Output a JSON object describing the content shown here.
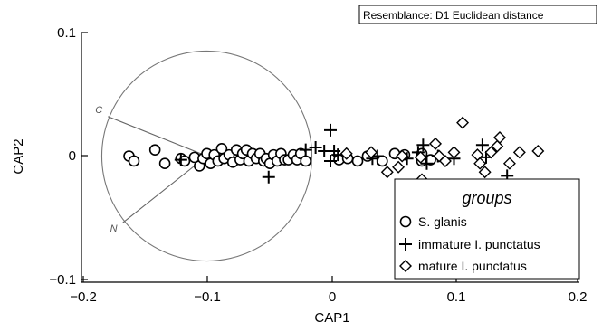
{
  "chart_data": {
    "type": "scatter",
    "badge": "Resemblance: D1 Euclidean distance",
    "xlabel": "CAP1",
    "ylabel": "CAP2",
    "xlim": [
      -0.2,
      0.2
    ],
    "ylim": [
      -0.1,
      0.1
    ],
    "x_ticks": [
      "−0.2",
      "−0.1",
      "0",
      "0.1",
      "0.2"
    ],
    "y_ticks": [
      "0.1",
      "0",
      "−0.1"
    ],
    "legend": {
      "title": "groups",
      "placement": "bottom-right"
    },
    "correlation_circle": {
      "center": [
        -0.1,
        0
      ],
      "radius": 0.085,
      "vectors": [
        {
          "label": "C",
          "x": -0.18,
          "y": 0.032
        },
        {
          "label": "N",
          "x": -0.168,
          "y": -0.054
        }
      ]
    },
    "series": [
      {
        "name": "S. glanis",
        "marker": "circle",
        "points": [
          [
            -0.163,
            0.0
          ],
          [
            -0.159,
            -0.004
          ],
          [
            -0.142,
            0.005
          ],
          [
            -0.134,
            -0.006
          ],
          [
            -0.121,
            -0.002
          ],
          [
            -0.118,
            -0.004
          ],
          [
            -0.11,
            -0.001
          ],
          [
            -0.106,
            -0.008
          ],
          [
            -0.103,
            -0.002
          ],
          [
            -0.1,
            0.002
          ],
          [
            -0.097,
            -0.006
          ],
          [
            -0.094,
            0.001
          ],
          [
            -0.091,
            -0.004
          ],
          [
            -0.088,
            0.006
          ],
          [
            -0.086,
            -0.002
          ],
          [
            -0.082,
            0.001
          ],
          [
            -0.079,
            -0.005
          ],
          [
            -0.076,
            0.005
          ],
          [
            -0.073,
            -0.003
          ],
          [
            -0.071,
            0.002
          ],
          [
            -0.068,
            0.005
          ],
          [
            -0.066,
            -0.004
          ],
          [
            -0.063,
            0.002
          ],
          [
            -0.06,
            -0.002
          ],
          [
            -0.057,
            0.002
          ],
          [
            -0.054,
            -0.004
          ],
          [
            -0.052,
            -0.002
          ],
          [
            -0.049,
            -0.006
          ],
          [
            -0.046,
            0.001
          ],
          [
            -0.043,
            -0.004
          ],
          [
            -0.04,
            0.002
          ],
          [
            -0.037,
            -0.003
          ],
          [
            -0.034,
            -0.003
          ],
          [
            -0.03,
            0.001
          ],
          [
            -0.027,
            -0.003
          ],
          [
            -0.024,
            0.002
          ],
          [
            -0.02,
            -0.004
          ],
          [
            0.007,
            -0.003
          ],
          [
            0.014,
            -0.002
          ],
          [
            0.022,
            -0.004
          ],
          [
            0.03,
            0.0
          ],
          [
            0.042,
            -0.004
          ],
          [
            0.052,
            0.002
          ],
          [
            0.06,
            0.001
          ],
          [
            0.074,
            -0.004
          ],
          [
            0.074,
            0.002
          ],
          [
            0.081,
            -0.003
          ]
        ]
      },
      {
        "name": "immature I. punctatus",
        "marker": "plus",
        "points": [
          [
            -0.121,
            -0.003
          ],
          [
            -0.05,
            -0.017
          ],
          [
            -0.02,
            0.005
          ],
          [
            -0.012,
            0.007
          ],
          [
            -0.005,
            0.004
          ],
          [
            0.0,
            0.021
          ],
          [
            0.0,
            -0.004
          ],
          [
            0.003,
            0.004
          ],
          [
            0.006,
            0.001
          ],
          [
            0.034,
            -0.002
          ],
          [
            0.038,
            0.0
          ],
          [
            0.062,
            -0.002
          ],
          [
            0.071,
            0.003
          ],
          [
            0.075,
            0.009
          ],
          [
            0.078,
            -0.006
          ],
          [
            0.087,
            0.0
          ],
          [
            0.1,
            -0.002
          ],
          [
            0.123,
            0.009
          ],
          [
            0.126,
            -0.001
          ],
          [
            0.143,
            -0.016
          ]
        ]
      },
      {
        "name": "mature I. punctatus",
        "marker": "diamond",
        "points": [
          [
            0.013,
            0.002
          ],
          [
            0.033,
            0.003
          ],
          [
            0.046,
            -0.013
          ],
          [
            0.055,
            -0.009
          ],
          [
            0.058,
            0.0
          ],
          [
            0.073,
            -0.001
          ],
          [
            0.074,
            -0.019
          ],
          [
            0.085,
            0.01
          ],
          [
            0.088,
            0.0
          ],
          [
            0.093,
            -0.004
          ],
          [
            0.1,
            0.003
          ],
          [
            0.107,
            0.027
          ],
          [
            0.119,
            0.001
          ],
          [
            0.121,
            -0.006
          ],
          [
            0.125,
            -0.013
          ],
          [
            0.13,
            0.003
          ],
          [
            0.135,
            0.008
          ],
          [
            0.137,
            0.015
          ],
          [
            0.145,
            -0.006
          ],
          [
            0.153,
            0.003
          ],
          [
            0.168,
            0.004
          ]
        ]
      }
    ]
  }
}
